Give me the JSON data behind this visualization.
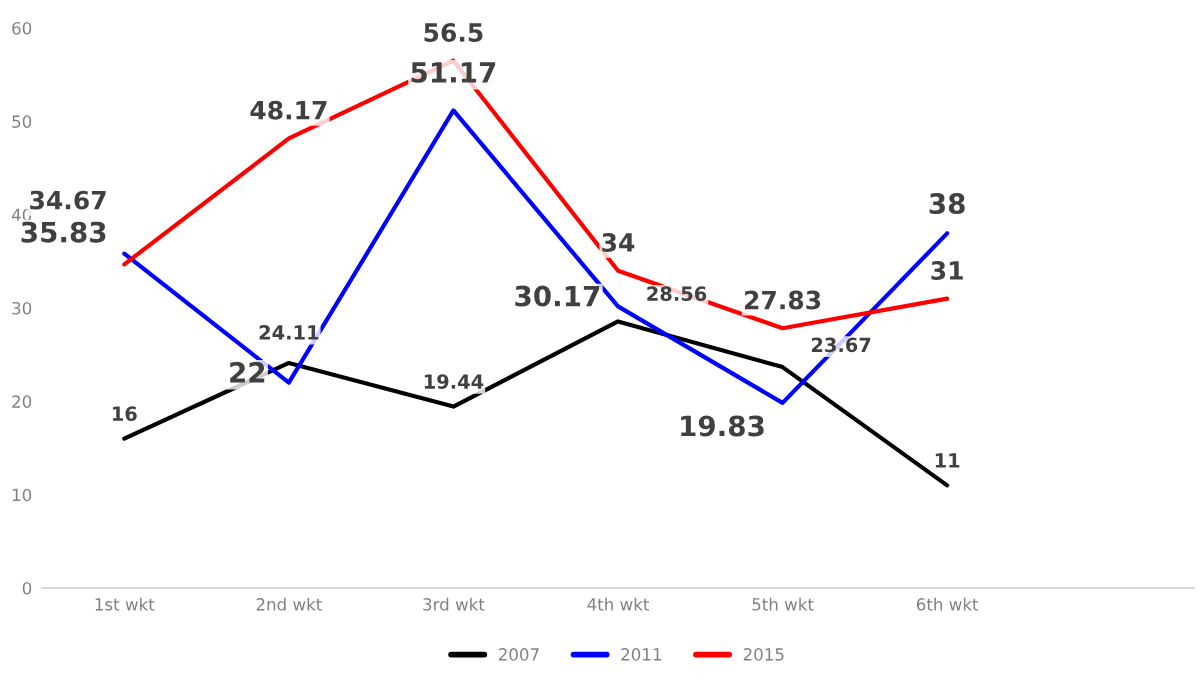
{
  "chart_data": {
    "type": "line",
    "categories": [
      "1st wkt",
      "2nd wkt",
      "3rd wkt",
      "4th wkt",
      "5th wkt",
      "6th wkt",
      null
    ],
    "series": [
      {
        "name": "2007",
        "color": "#000000",
        "values": [
          16,
          24.11,
          19.44,
          28.56,
          23.67,
          11,
          null
        ]
      },
      {
        "name": "2011",
        "color": "#0000ff",
        "values": [
          35.83,
          22,
          51.17,
          30.17,
          19.83,
          38,
          null
        ]
      },
      {
        "name": "2015",
        "color": "#ff0000",
        "values": [
          34.67,
          48.17,
          56.5,
          34,
          27.83,
          31,
          null
        ]
      }
    ],
    "ylim": [
      0,
      60
    ],
    "yticks": [
      0,
      10,
      20,
      30,
      40,
      50,
      60
    ],
    "grid": false,
    "legend": "bottom",
    "data_labels": true,
    "marker": "none",
    "line_style": "solid"
  }
}
